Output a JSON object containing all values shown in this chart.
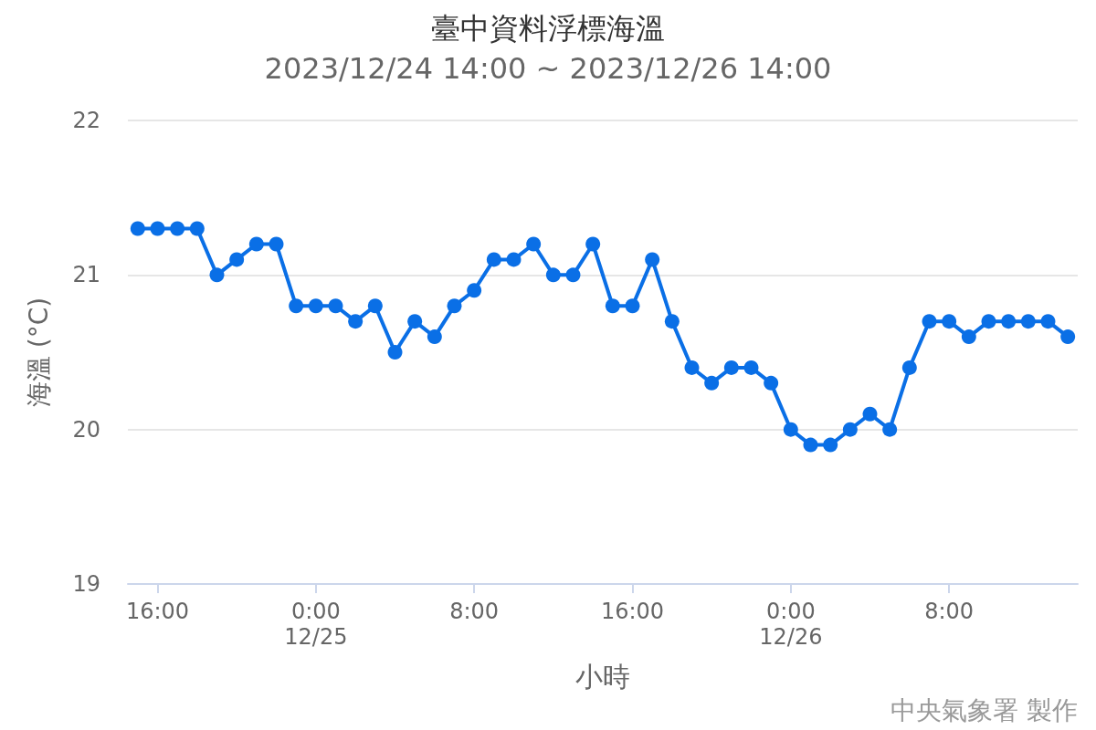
{
  "chart_data": {
    "type": "line",
    "title": "臺中資料浮標海溫",
    "subtitle": "2023/12/24 14:00 ~ 2023/12/26 14:00",
    "xlabel": "小時",
    "ylabel": "海溫 (°C)",
    "annotations": [
      "中央氣象署 製作"
    ],
    "x": [
      "2023-12-24T15:00",
      "2023-12-24T16:00",
      "2023-12-24T17:00",
      "2023-12-24T18:00",
      "2023-12-24T19:00",
      "2023-12-24T20:00",
      "2023-12-24T21:00",
      "2023-12-24T22:00",
      "2023-12-24T23:00",
      "2023-12-25T00:00",
      "2023-12-25T01:00",
      "2023-12-25T02:00",
      "2023-12-25T03:00",
      "2023-12-25T04:00",
      "2023-12-25T05:00",
      "2023-12-25T06:00",
      "2023-12-25T07:00",
      "2023-12-25T08:00",
      "2023-12-25T09:00",
      "2023-12-25T10:00",
      "2023-12-25T11:00",
      "2023-12-25T12:00",
      "2023-12-25T13:00",
      "2023-12-25T14:00",
      "2023-12-25T15:00",
      "2023-12-25T16:00",
      "2023-12-25T17:00",
      "2023-12-25T18:00",
      "2023-12-25T19:00",
      "2023-12-25T20:00",
      "2023-12-25T21:00",
      "2023-12-25T22:00",
      "2023-12-25T23:00",
      "2023-12-26T00:00",
      "2023-12-26T01:00",
      "2023-12-26T02:00",
      "2023-12-26T03:00",
      "2023-12-26T04:00",
      "2023-12-26T05:00",
      "2023-12-26T06:00",
      "2023-12-26T07:00",
      "2023-12-26T08:00",
      "2023-12-26T09:00",
      "2023-12-26T10:00",
      "2023-12-26T11:00",
      "2023-12-26T12:00",
      "2023-12-26T13:00",
      "2023-12-26T14:00"
    ],
    "series": [
      {
        "color": "#0a6fe6",
        "values": [
          21.3,
          21.3,
          21.3,
          21.3,
          21.0,
          21.1,
          21.2,
          21.2,
          20.8,
          20.8,
          20.8,
          20.7,
          20.8,
          20.5,
          20.7,
          20.6,
          20.8,
          20.9,
          21.1,
          21.1,
          21.2,
          21.0,
          21.0,
          21.2,
          20.8,
          20.8,
          21.1,
          20.7,
          20.4,
          20.3,
          20.4,
          20.4,
          20.3,
          20.0,
          19.9,
          19.9,
          20.0,
          20.1,
          20.0,
          20.4,
          20.7,
          20.7,
          20.6,
          20.7,
          20.7,
          20.7,
          20.7,
          20.6
        ]
      }
    ],
    "xlim": [
      "2023-12-24T14:30",
      "2023-12-26T14:30"
    ],
    "xticks": [
      {
        "value": "2023-12-24T16:00",
        "label": "16:00"
      },
      {
        "value": "2023-12-25T00:00",
        "label": "0:00\n12/25"
      },
      {
        "value": "2023-12-25T08:00",
        "label": "8:00"
      },
      {
        "value": "2023-12-25T16:00",
        "label": "16:00"
      },
      {
        "value": "2023-12-26T00:00",
        "label": "0:00\n12/26"
      },
      {
        "value": "2023-12-26T08:00",
        "label": "8:00"
      }
    ],
    "ylim": [
      19,
      22
    ],
    "yticks": [
      19,
      20,
      21,
      22
    ],
    "grid": "y",
    "marker": "circle",
    "line_style": "solid"
  }
}
